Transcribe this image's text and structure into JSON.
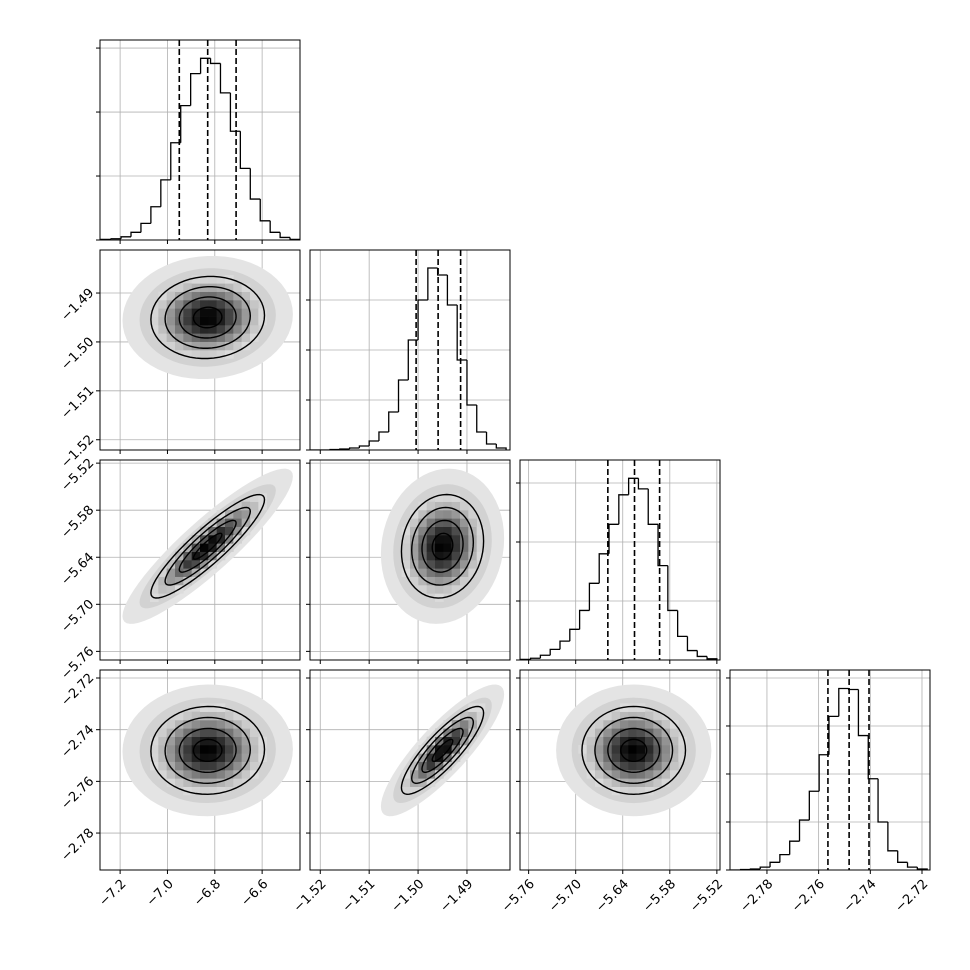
{
  "chart_data": [
    {
      "type": "histogram",
      "bins": [
        -7.28,
        -7.238,
        -7.196,
        -7.154,
        -7.112,
        -7.07,
        -7.028,
        -6.986,
        -6.944,
        -6.902,
        -6.86,
        -6.818,
        -6.776,
        -6.734,
        -6.692,
        -6.65,
        -6.608,
        -6.566,
        -6.524,
        -6.482,
        -6.44
      ],
      "counts": [
        5,
        10,
        25,
        60,
        130,
        260,
        470,
        760,
        1050,
        1300,
        1420,
        1380,
        1150,
        850,
        560,
        320,
        150,
        60,
        20,
        5
      ],
      "quantiles": [
        -6.95,
        -6.83,
        -6.71
      ],
      "xlim": [
        -7.285,
        -6.44
      ],
      "ylim": [
        0,
        1563
      ],
      "xticks": [
        -7.2,
        -7.0,
        -6.8,
        -6.6
      ],
      "yticks": [
        0,
        500,
        1000,
        1500
      ],
      "grid": true
    },
    {
      "type": "hist2d",
      "mean": [
        -6.83,
        -1.495
      ],
      "sd": [
        0.12,
        0.0042
      ],
      "corr": 0.05,
      "levels": [
        0.5,
        1,
        1.5,
        2
      ],
      "xlim": [
        -7.285,
        -6.44
      ],
      "ylim": [
        -1.5221,
        -1.4812
      ],
      "xticks": [
        -7.2,
        -7.0,
        -6.8,
        -6.6
      ],
      "yticks": [
        {
          "value": -1.52,
          "label": "−1.52"
        },
        {
          "value": -1.51,
          "label": "−1.51"
        },
        {
          "value": -1.5,
          "label": "−1.50"
        },
        {
          "value": -1.49,
          "label": "−1.49"
        }
      ],
      "grid": true
    },
    {
      "type": "histogram",
      "bins": [
        -1.522,
        -1.52,
        -1.518,
        -1.516,
        -1.514,
        -1.512,
        -1.51,
        -1.508,
        -1.506,
        -1.504,
        -1.502,
        -1.5,
        -1.498,
        -1.496,
        -1.494,
        -1.492,
        -1.49,
        -1.488,
        -1.486,
        -1.484,
        -1.482
      ],
      "counts": [
        0,
        0,
        5,
        10,
        20,
        40,
        90,
        180,
        380,
        700,
        1100,
        1500,
        1820,
        1750,
        1450,
        900,
        450,
        180,
        60,
        20
      ],
      "quantiles": [
        -1.5004,
        -1.4959,
        -1.4913
      ],
      "xlim": [
        -1.5221,
        -1.4812
      ],
      "ylim": [
        0,
        2000
      ],
      "xticks": [
        -1.52,
        -1.51,
        -1.5,
        -1.49
      ],
      "yticks": [
        0,
        500,
        1000,
        1500
      ],
      "grid": true
    },
    {
      "type": "hist2d",
      "mean": [
        -6.83,
        -5.626
      ],
      "sd": [
        0.12,
        0.033
      ],
      "corr": 0.9,
      "levels": [
        0.5,
        1,
        1.5,
        2
      ],
      "xlim": [
        -7.285,
        -6.44
      ],
      "ylim": [
        -5.771,
        -5.516
      ],
      "xticks": [
        -7.2,
        -7.0,
        -6.8,
        -6.6
      ],
      "yticks": [
        {
          "value": -5.76,
          "label": "−5.76"
        },
        {
          "value": -5.7,
          "label": "−5.70"
        },
        {
          "value": -5.64,
          "label": "−5.64"
        },
        {
          "value": -5.58,
          "label": "−5.58"
        },
        {
          "value": -5.52,
          "label": "−5.52"
        }
      ],
      "grid": true
    },
    {
      "type": "hist2d",
      "mean": [
        -1.495,
        -5.626
      ],
      "sd": [
        0.0042,
        0.033
      ],
      "corr": 0.1,
      "levels": [
        0.5,
        1,
        1.5,
        2
      ],
      "xlim": [
        -1.5221,
        -1.4812
      ],
      "ylim": [
        -5.771,
        -5.516
      ],
      "xticks": [
        -1.52,
        -1.51,
        -1.5,
        -1.49
      ],
      "yticks": [
        -5.76,
        -5.7,
        -5.64,
        -5.58,
        -5.52
      ],
      "grid": true
    },
    {
      "type": "histogram",
      "bins": [
        -5.77,
        -5.7575,
        -5.745,
        -5.7325,
        -5.72,
        -5.7075,
        -5.695,
        -5.6825,
        -5.67,
        -5.6575,
        -5.645,
        -5.6325,
        -5.62,
        -5.6075,
        -5.595,
        -5.5825,
        -5.57,
        -5.5575,
        -5.545,
        -5.5325,
        -5.52
      ],
      "counts": [
        5,
        15,
        40,
        90,
        160,
        260,
        420,
        650,
        900,
        1150,
        1400,
        1540,
        1450,
        1150,
        800,
        420,
        200,
        80,
        30,
        10
      ],
      "quantiles": [
        -5.659,
        -5.625,
        -5.593
      ],
      "xlim": [
        -5.771,
        -5.516
      ],
      "ylim": [
        0,
        1695
      ],
      "xticks": [
        -5.76,
        -5.7,
        -5.64,
        -5.58,
        -5.52
      ],
      "yticks": [
        0,
        500,
        1000,
        1500
      ],
      "grid": true
    },
    {
      "type": "hist2d",
      "mean": [
        -6.83,
        -2.748
      ],
      "sd": [
        0.12,
        0.0085
      ],
      "corr": 0.02,
      "levels": [
        0.5,
        1,
        1.5,
        2
      ],
      "xlim": [
        -7.285,
        -6.44
      ],
      "ylim": [
        -2.7943,
        -2.7169
      ],
      "xticks": [
        {
          "value": -7.2,
          "label": "−7.2"
        },
        {
          "value": -7.0,
          "label": "−7.0"
        },
        {
          "value": -6.8,
          "label": "−6.8"
        },
        {
          "value": -6.6,
          "label": "−6.6"
        }
      ],
      "yticks": [
        {
          "value": -2.78,
          "label": "−2.78"
        },
        {
          "value": -2.76,
          "label": "−2.76"
        },
        {
          "value": -2.74,
          "label": "−2.74"
        },
        {
          "value": -2.72,
          "label": "−2.72"
        }
      ],
      "grid": true
    },
    {
      "type": "hist2d",
      "mean": [
        -1.495,
        -2.748
      ],
      "sd": [
        0.0042,
        0.0085
      ],
      "corr": 0.85,
      "levels": [
        0.5,
        1,
        1.5,
        2
      ],
      "xlim": [
        -1.5221,
        -1.4812
      ],
      "ylim": [
        -2.7943,
        -2.7169
      ],
      "xticks": [
        {
          "value": -1.52,
          "label": "−1.52"
        },
        {
          "value": -1.51,
          "label": "−1.51"
        },
        {
          "value": -1.5,
          "label": "−1.50"
        },
        {
          "value": -1.49,
          "label": "−1.49"
        }
      ],
      "yticks": [
        -2.78,
        -2.76,
        -2.74,
        -2.72
      ],
      "grid": true
    },
    {
      "type": "hist2d",
      "mean": [
        -5.626,
        -2.748
      ],
      "sd": [
        0.033,
        0.0085
      ],
      "corr": 0.0,
      "levels": [
        0.5,
        1,
        1.5,
        2
      ],
      "xlim": [
        -5.771,
        -5.516
      ],
      "ylim": [
        -2.7943,
        -2.7169
      ],
      "xticks": [
        {
          "value": -5.76,
          "label": "−5.76"
        },
        {
          "value": -5.7,
          "label": "−5.70"
        },
        {
          "value": -5.64,
          "label": "−5.64"
        },
        {
          "value": -5.58,
          "label": "−5.58"
        },
        {
          "value": -5.52,
          "label": "−5.52"
        }
      ],
      "yticks": [
        -2.78,
        -2.76,
        -2.74,
        -2.72
      ],
      "grid": true
    },
    {
      "type": "histogram",
      "bins": [
        -2.794,
        -2.7902,
        -2.7864,
        -2.7826,
        -2.7788,
        -2.775,
        -2.7712,
        -2.7674,
        -2.7636,
        -2.7598,
        -2.756,
        -2.7522,
        -2.7484,
        -2.7446,
        -2.7408,
        -2.737,
        -2.7332,
        -2.7294,
        -2.7256,
        -2.7218,
        -2.718
      ],
      "counts": [
        0,
        5,
        10,
        30,
        80,
        160,
        300,
        520,
        820,
        1200,
        1600,
        1890,
        1880,
        1400,
        950,
        500,
        200,
        80,
        30,
        10
      ],
      "quantiles": [
        -2.7564,
        -2.7482,
        -2.7405
      ],
      "xlim": [
        -2.7943,
        -2.7169
      ],
      "ylim": [
        0,
        2083
      ],
      "xticks": [
        {
          "value": -2.78,
          "label": "−2.78"
        },
        {
          "value": -2.76,
          "label": "−2.76"
        },
        {
          "value": -2.74,
          "label": "−2.74"
        },
        {
          "value": -2.72,
          "label": "−2.72"
        }
      ],
      "yticks": [
        0,
        500,
        1000,
        1500,
        2000
      ],
      "grid": true
    }
  ]
}
